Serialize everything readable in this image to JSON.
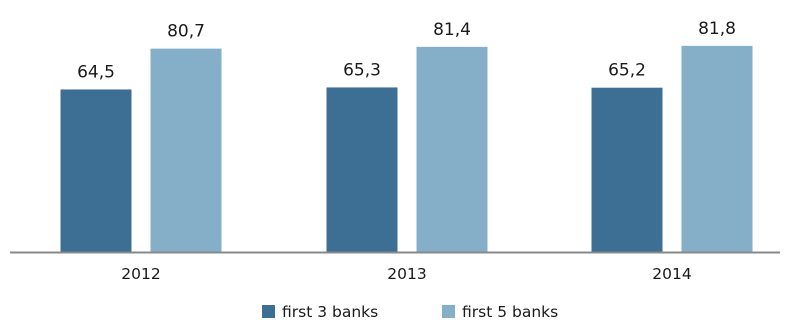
{
  "chart_data": {
    "type": "bar",
    "categories": [
      "2012",
      "2013",
      "2014"
    ],
    "series": [
      {
        "name": "first 3 banks",
        "values": [
          64.5,
          65.3,
          65.2
        ],
        "labels": [
          "64,5",
          "65,3",
          "65,2"
        ],
        "color": "#3d6e93"
      },
      {
        "name": "first 5 banks",
        "values": [
          80.7,
          81.4,
          81.8
        ],
        "labels": [
          "80,7",
          "81,4",
          "81,8"
        ],
        "color": "#85afc8"
      }
    ],
    "ylim": [
      0,
      100
    ],
    "grid": false,
    "legend": "bottom-center",
    "axis_color": "#888888"
  }
}
